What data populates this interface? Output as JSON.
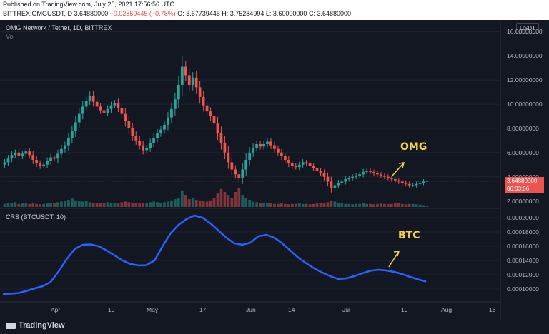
{
  "header": {
    "published": "Published on TradingView.com, July 25, 2021 17:56:56 UTC",
    "symbol_line": "BITTREX:OMGUSDT, D",
    "ohlc_open_price": "3.64880000",
    "ohlc_change": "−0.02859445 (−0.78%)",
    "ohlc_o": "O: 3.67739445",
    "ohlc_h": "H: 3.75284994",
    "ohlc_l": "L: 3.60000000",
    "ohlc_c": "C: 3.64880000"
  },
  "main_pane": {
    "title": "OMG Network / Tether, 1D, BITTREX",
    "vol_label": "Vol",
    "currency_badge": "USDT",
    "price_ticks": [
      "16.00000000",
      "14.00000000",
      "12.00000000",
      "10.00000000",
      "8.00000000",
      "6.00000000",
      "4.00000000",
      "2.00000000"
    ],
    "current_price": "3.64880000",
    "countdown": "06:03:06",
    "annotation": "OMG"
  },
  "crs_pane": {
    "title": "CRS (BTCUSDT, 10)",
    "ticks": [
      "0.00020000",
      "0.00018000",
      "0.00016000",
      "0.00014000",
      "0.00012000",
      "0.00010000"
    ],
    "annotation": "BTC"
  },
  "time_axis": [
    "Apr",
    "19",
    "May",
    "17",
    "Jun",
    "14",
    "Jul",
    "19",
    "Aug",
    "16"
  ],
  "footer": {
    "brand": "TradingView"
  },
  "colors": {
    "up": "#26a69a",
    "down": "#ef5350",
    "crs_line": "#2962ff",
    "annotation": "#f5d547",
    "background": "#131722"
  },
  "chart_data": [
    {
      "type": "candlestick",
      "title": "OMG Network / Tether, 1D, BITTREX",
      "x_labels": [
        "Apr",
        "19",
        "May",
        "17",
        "Jun",
        "14",
        "Jul",
        "19",
        "Aug",
        "16"
      ],
      "ylim": [
        1.5,
        16.5
      ],
      "close": [
        5.2,
        5.5,
        5.8,
        6.0,
        5.7,
        5.9,
        6.1,
        5.8,
        5.4,
        5.1,
        4.9,
        5.0,
        5.3,
        5.6,
        5.5,
        5.9,
        6.3,
        6.6,
        7.2,
        7.8,
        8.5,
        9.2,
        9.8,
        10.3,
        10.7,
        10.2,
        9.8,
        9.5,
        9.3,
        9.6,
        9.9,
        10.1,
        9.7,
        9.2,
        8.6,
        8.0,
        7.4,
        7.0,
        6.6,
        6.2,
        6.4,
        6.8,
        7.2,
        7.6,
        7.9,
        8.3,
        8.9,
        9.6,
        10.4,
        11.6,
        13.1,
        12.4,
        11.6,
        12.2,
        11.4,
        10.6,
        9.9,
        9.4,
        9.0,
        8.4,
        7.6,
        6.8,
        6.0,
        5.2,
        4.6,
        4.2,
        3.9,
        4.6,
        5.4,
        6.0,
        6.4,
        6.7,
        6.5,
        6.7,
        6.9,
        6.6,
        6.3,
        6.0,
        5.7,
        5.4,
        5.1,
        4.9,
        4.8,
        5.0,
        5.2,
        5.1,
        4.9,
        4.7,
        4.5,
        4.3,
        4.0,
        3.6,
        3.1,
        3.3,
        3.5,
        3.6,
        3.8,
        3.9,
        4.0,
        4.1,
        4.2,
        4.4,
        4.5,
        4.4,
        4.3,
        4.2,
        4.1,
        4.0,
        3.9,
        3.8,
        3.7,
        3.6,
        3.5,
        3.4,
        3.3,
        3.3,
        3.4,
        3.5,
        3.6,
        3.65
      ],
      "volume": [
        0.1,
        0.14,
        0.12,
        0.16,
        0.1,
        0.12,
        0.14,
        0.1,
        0.12,
        0.1,
        0.09,
        0.1,
        0.12,
        0.14,
        0.12,
        0.16,
        0.18,
        0.2,
        0.24,
        0.28,
        0.22,
        0.2,
        0.18,
        0.2,
        0.16,
        0.14,
        0.12,
        0.14,
        0.12,
        0.16,
        0.14,
        0.12,
        0.14,
        0.16,
        0.18,
        0.16,
        0.14,
        0.12,
        0.14,
        0.12,
        0.14,
        0.16,
        0.18,
        0.16,
        0.14,
        0.16,
        0.18,
        0.22,
        0.26,
        0.3,
        0.55,
        0.4,
        0.26,
        0.3,
        0.24,
        0.22,
        0.2,
        0.18,
        0.22,
        0.3,
        0.45,
        0.6,
        0.5,
        0.4,
        0.3,
        0.5,
        0.62,
        0.4,
        0.3,
        0.24,
        0.18,
        0.16,
        0.14,
        0.14,
        0.12,
        0.12,
        0.1,
        0.1,
        0.12,
        0.1,
        0.09,
        0.1,
        0.1,
        0.12,
        0.1,
        0.1,
        0.09,
        0.1,
        0.12,
        0.14,
        0.12,
        0.16,
        0.22,
        0.18,
        0.14,
        0.12,
        0.1,
        0.1,
        0.09,
        0.1,
        0.1,
        0.12,
        0.1,
        0.1,
        0.09,
        0.1,
        0.12,
        0.1,
        0.09,
        0.1,
        0.14,
        0.12,
        0.1,
        0.09,
        0.1,
        0.1,
        0.09,
        0.08,
        0.06,
        0.04
      ]
    },
    {
      "type": "line",
      "title": "CRS (BTCUSDT, 10)",
      "ylim": [
        8.5e-05,
        0.000205
      ],
      "values": [
        9.3e-05,
        9.35e-05,
        9.45e-05,
        9.75e-05,
        0.000101,
        0.000104,
        0.00011,
        0.000125,
        0.000142,
        0.000156,
        0.000162,
        0.0001625,
        0.00016,
        0.000154,
        0.000147,
        0.00014,
        0.000135,
        0.000133,
        0.0001335,
        0.00014,
        0.00016,
        0.000178,
        0.00019,
        0.000198,
        0.000203,
        0.0002,
        0.000192,
        0.000182,
        0.000172,
        0.000164,
        0.000162,
        0.000165,
        0.000174,
        0.000176,
        0.000172,
        0.000164,
        0.000154,
        0.000144,
        0.000136,
        0.000129,
        0.000123,
        0.000118,
        0.000114,
        0.000115,
        0.000118,
        0.000122,
        0.0001255,
        0.000127,
        0.000126,
        0.000124,
        0.000121,
        0.000117,
        0.0001135,
        0.0001105
      ]
    }
  ]
}
